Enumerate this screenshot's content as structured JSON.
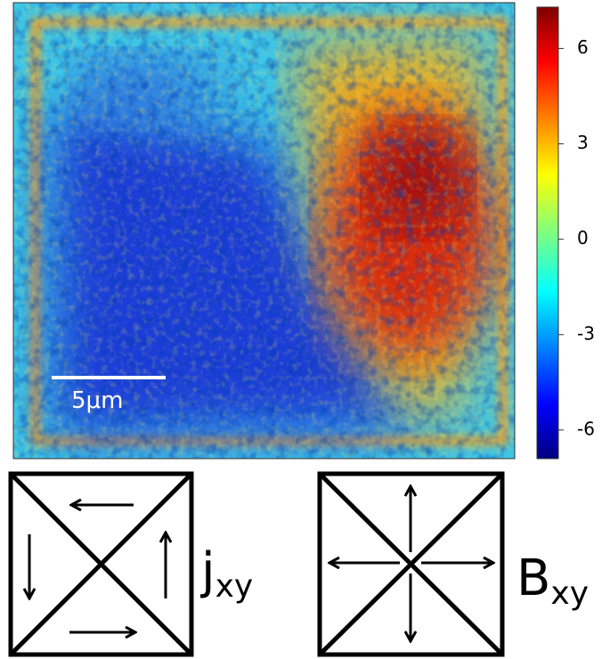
{
  "colorbar": {
    "range": [
      -6.9,
      7.3
    ],
    "ticks": [
      6,
      3,
      0,
      -3,
      -6
    ]
  },
  "scale_bar": {
    "label": "5μm"
  },
  "diagrams": [
    {
      "label": "j",
      "subscript": "xy"
    },
    {
      "label": "B",
      "subscript": "xy"
    }
  ]
}
